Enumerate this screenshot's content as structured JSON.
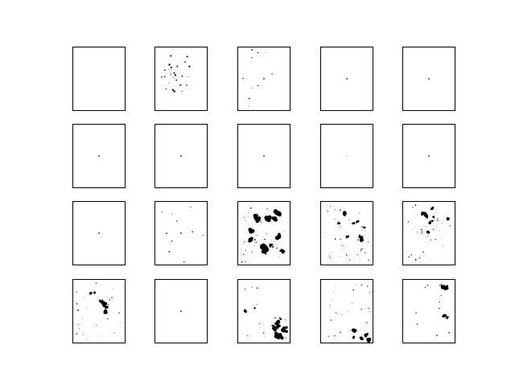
{
  "figure": {
    "rows": 4,
    "cols": 5,
    "background": "#ffffff",
    "ink": "#000000",
    "axes_ticks_visible": false,
    "panels": [
      {
        "content": "empty"
      },
      {
        "content": "scattered-specks"
      },
      {
        "content": "few-specks"
      },
      {
        "content": "center-dot"
      },
      {
        "content": "center-dot"
      },
      {
        "content": "center-dot"
      },
      {
        "content": "center-dot"
      },
      {
        "content": "center-dot"
      },
      {
        "content": "faint-dot"
      },
      {
        "content": "center-dot"
      },
      {
        "content": "center-dot"
      },
      {
        "content": "few-specks"
      },
      {
        "content": "dense-blobs"
      },
      {
        "content": "medium-blobs"
      },
      {
        "content": "medium-blobs"
      },
      {
        "content": "medium-blobs-left"
      },
      {
        "content": "center-dot"
      },
      {
        "content": "dense-blobs-bottom"
      },
      {
        "content": "medium-blobs-bottom"
      },
      {
        "content": "blobs-right"
      }
    ]
  }
}
